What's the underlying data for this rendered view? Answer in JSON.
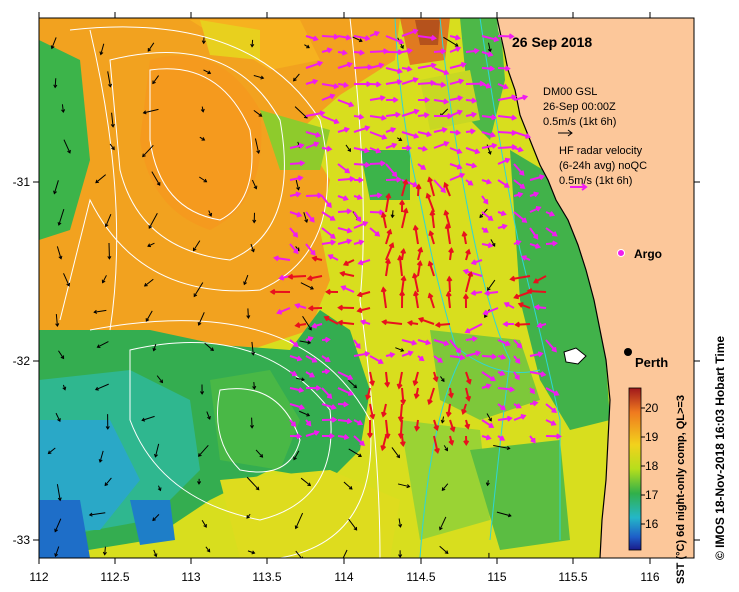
{
  "map": {
    "date_label": "26 Sep 2018",
    "xticks": [
      "112",
      "112.5",
      "113",
      "113.5",
      "114",
      "114.5",
      "115",
      "115.5",
      "116"
    ],
    "yticks": [
      "-31",
      "-32",
      "-33"
    ],
    "place_label": "Perth",
    "argo_label": "Argo",
    "legend": {
      "model_line1": "DM00 GSL",
      "model_line2": "26-Sep 00:00Z",
      "model_line3": "0.5m/s (1kt 6h)",
      "radar_line1": "HF radar velocity",
      "radar_line2": "(6-24h avg) noQC",
      "radar_line3": "0.5m/s (1kt 6h)"
    },
    "colorbar": {
      "ticks": [
        "20",
        "19",
        "18",
        "17",
        "16"
      ],
      "label": "SST (°C) 6d night-only comp, QL>=3"
    },
    "credit": "© IMOS 18-Nov-2018 16:03 Hobart Time",
    "colors": {
      "land": "#fcc79a",
      "warm": "#f2a21f",
      "mid": "#d6df1c",
      "cool": "#31b04a",
      "cold": "#2aa8c7",
      "radar_arrows": "#f01cf0",
      "radar_arrows_fast": "#e8101e",
      "isobath": "#2ed6d6"
    }
  }
}
